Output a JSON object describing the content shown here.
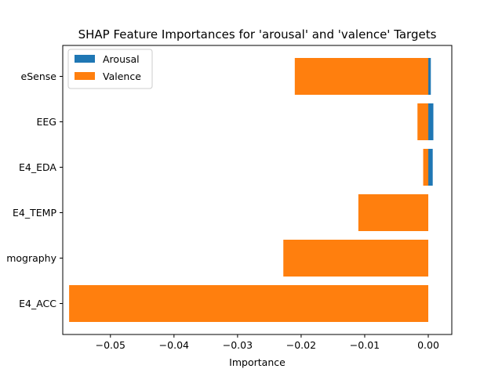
{
  "chart_data": {
    "type": "bar",
    "orientation": "horizontal",
    "title": "SHAP Feature Importances for 'arousal' and 'valence' Targets",
    "xlabel": "Importance",
    "ylabel": "",
    "categories": [
      "eSense",
      "EEG",
      "E4_EDA",
      "E4_TEMP",
      "Demography",
      "E4_ACC"
    ],
    "category_tick_labels": [
      "eSense",
      "EEG",
      "E4_EDA",
      "E4_TEMP",
      "mography",
      "E4_ACC"
    ],
    "series": [
      {
        "name": "Arousal",
        "color": "#1f77b4",
        "values": [
          0.0004,
          0.0008,
          0.0007,
          0.0,
          0.0,
          0.0
        ]
      },
      {
        "name": "Valence",
        "color": "#ff7f0e",
        "values": [
          -0.021,
          -0.0017,
          -0.0008,
          -0.011,
          -0.0228,
          -0.0565
        ]
      }
    ],
    "xlim": [
      -0.0575,
      0.0037
    ],
    "xticks": [
      -0.05,
      -0.04,
      -0.03,
      -0.02,
      -0.01,
      0.0
    ],
    "xtick_labels": [
      "−0.05",
      "−0.04",
      "−0.03",
      "−0.02",
      "−0.01",
      "0.00"
    ],
    "legend_position": "top-left",
    "grid": false
  }
}
